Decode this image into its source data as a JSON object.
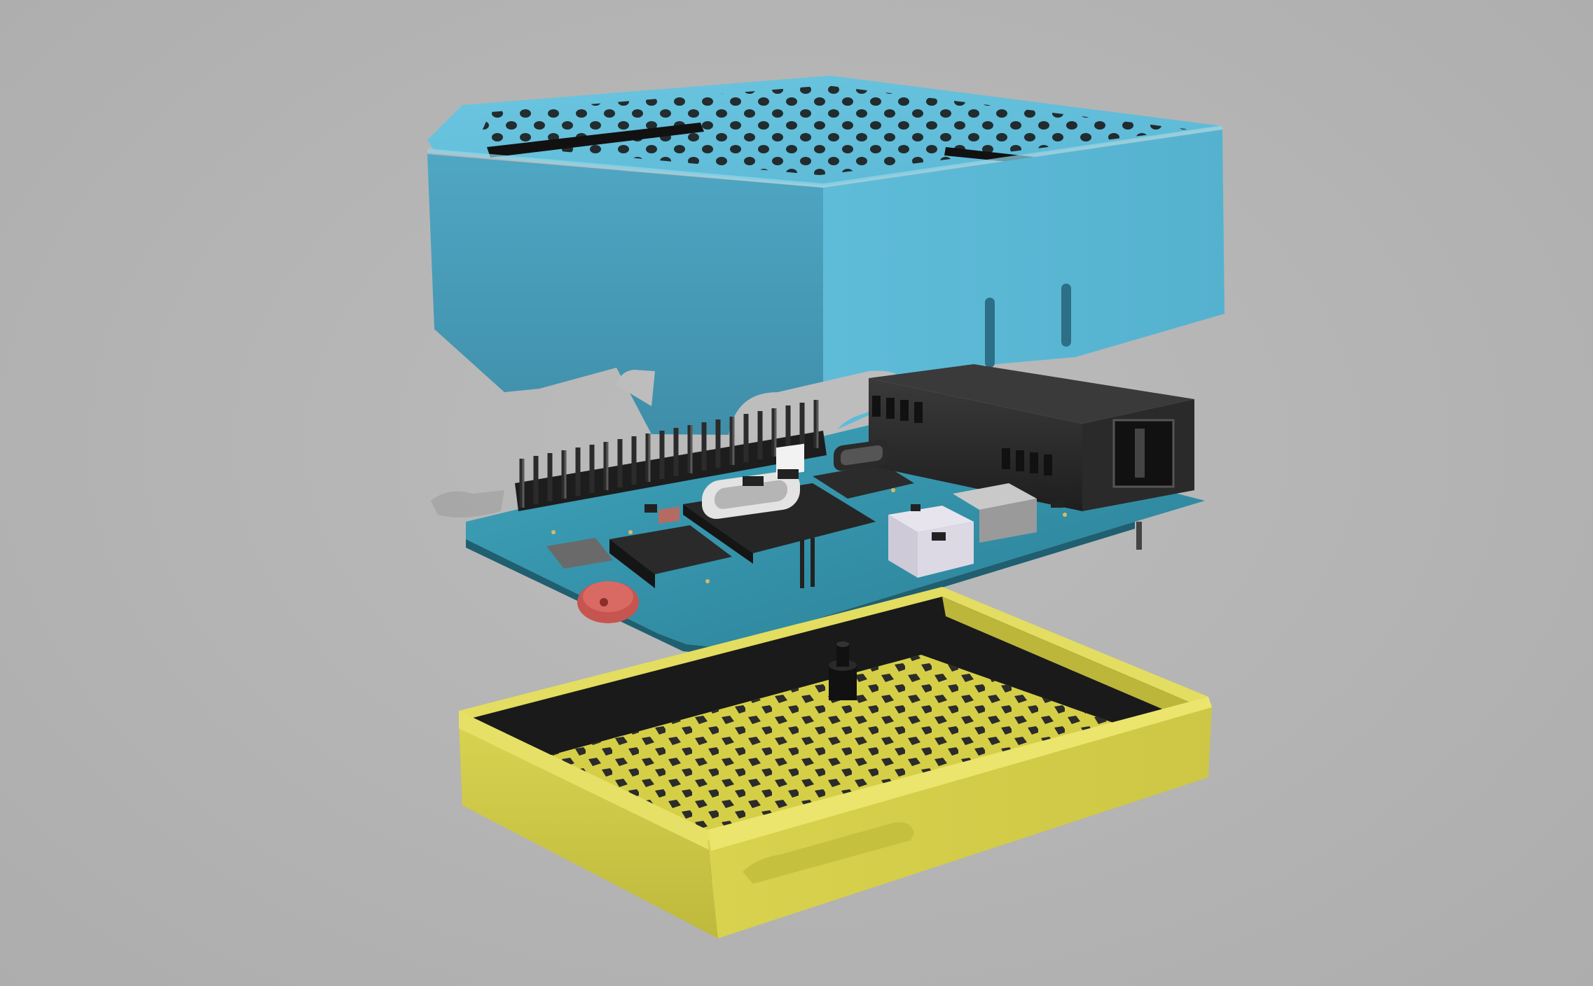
{
  "scene": {
    "background_color": "#b4b4b4",
    "parts": [
      {
        "name": "top-case-lid",
        "color": "#5cb8d6"
      },
      {
        "name": "circuit-board",
        "color": "#2f8fa6"
      },
      {
        "name": "bottom-case-tray",
        "color": "#d2cc4a"
      }
    ]
  }
}
